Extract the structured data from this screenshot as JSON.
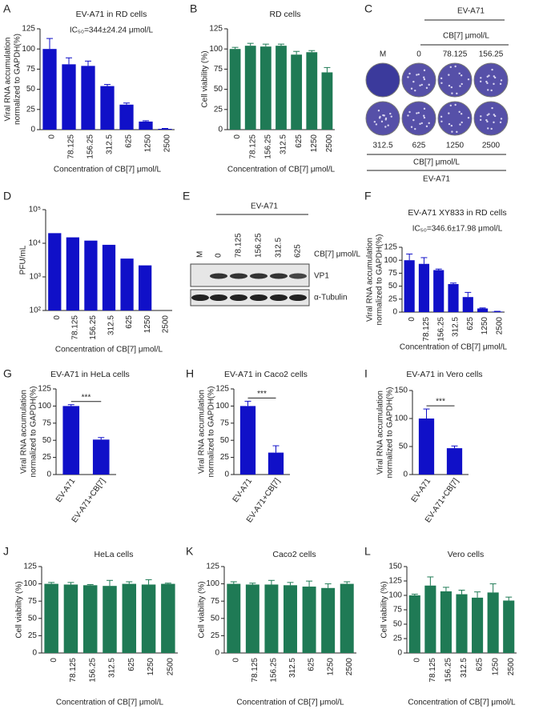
{
  "chart_data": [
    {
      "type": "bar",
      "label": "A",
      "title": "EV-A71 in RD cells",
      "annotation": "IC₅₀=344±24.24 μmol/L",
      "ylabel": [
        "Viral RNA accumulation",
        "normalized to GAPDH(%)"
      ],
      "xlabel": "Concentration of CB[7] μmol/L",
      "categories": [
        "0",
        "78.125",
        "156.25",
        "312.5",
        "625",
        "1250",
        "2500"
      ],
      "values": [
        100,
        81,
        79,
        54,
        31,
        10,
        1
      ],
      "errors": [
        13,
        8,
        6,
        2,
        2,
        1,
        0.5
      ],
      "color": "#1010c8",
      "ylim": [
        0,
        125
      ],
      "yticks": [
        0,
        25,
        50,
        75,
        100,
        125
      ]
    },
    {
      "type": "bar",
      "label": "B",
      "title": "RD cells",
      "ylabel": [
        "Cell viability  (%)"
      ],
      "xlabel": "Concentration of CB[7] μmol/L",
      "categories": [
        "0",
        "78.125",
        "156.25",
        "312.5",
        "625",
        "1250",
        "2500"
      ],
      "values": [
        100,
        104,
        103,
        104,
        93,
        96,
        71
      ],
      "errors": [
        2,
        3,
        3,
        2,
        4,
        2,
        6
      ],
      "color": "#1f7a55",
      "ylim": [
        0,
        125
      ],
      "yticks": [
        0,
        25,
        50,
        75,
        100,
        125
      ]
    },
    {
      "type": "plaque-assay",
      "label": "C",
      "top_label": "EV-A71",
      "top_sublabel": "CB[7] μmol/L",
      "top_lanes": [
        "M",
        "0",
        "78.125",
        "156.25"
      ],
      "bottom_lanes": [
        "312.5",
        "625",
        "1250",
        "2500"
      ],
      "bottom_sublabel": "CB[7] μmol/L",
      "bottom_label": "EV-A71"
    },
    {
      "type": "bar",
      "label": "D",
      "ylabel": [
        "PFU/mL"
      ],
      "xlabel": "Concentration of CB[7] μmol/L",
      "categories": [
        "0",
        "78.125",
        "156.25",
        "312.5",
        "625",
        "1250",
        "2500"
      ],
      "values": [
        20000,
        15000,
        12000,
        9000,
        3500,
        2200,
        null
      ],
      "color": "#1010c8",
      "log_scale": true,
      "ylim": [
        100,
        100000
      ],
      "yticks": [
        {
          "value": 100,
          "label": "10²"
        },
        {
          "value": 1000,
          "label": "10³"
        },
        {
          "value": 10000,
          "label": "10⁴"
        },
        {
          "value": 100000,
          "label": "10⁵"
        }
      ]
    },
    {
      "type": "western-blot",
      "label": "E",
      "header": "EV-A71",
      "lanes": [
        "M",
        "0",
        "78.125",
        "156.25",
        "312.5",
        "625"
      ],
      "lane_unit": "CB[7]  μmol/L",
      "bands": [
        "VP1",
        "α-Tubulin"
      ]
    },
    {
      "type": "bar",
      "label": "F",
      "title": "EV-A71 XY833 in RD cells",
      "annotation": "IC₅₀=346.6±17.98 μmol/L",
      "ylabel": [
        "Viral RNA accumulation",
        "normalized to GAPDH(%)"
      ],
      "xlabel": "Concentration of CB[7] μmol/L",
      "categories": [
        "0",
        "78.125",
        "156.25",
        "312.5",
        "625",
        "1250",
        "2500"
      ],
      "values": [
        100,
        93,
        81,
        54,
        29,
        7,
        1
      ],
      "errors": [
        12,
        12,
        2,
        2,
        9,
        1,
        0.5
      ],
      "color": "#1010c8",
      "ylim": [
        0,
        125
      ],
      "yticks": [
        0,
        25,
        50,
        75,
        100,
        125
      ]
    },
    {
      "type": "bar",
      "label": "G",
      "title": "EV-A71 in HeLa cells",
      "ylabel": [
        "Viral RNA accumulation",
        "normalized to GAPDH(%)"
      ],
      "categories": [
        "EV-A71",
        "EV-A71+CB[7]"
      ],
      "values": [
        100,
        51
      ],
      "errors": [
        2,
        3
      ],
      "color": "#1010c8",
      "significance": "***",
      "ylim": [
        0,
        125
      ],
      "yticks": [
        0,
        25,
        50,
        75,
        100,
        125
      ]
    },
    {
      "type": "bar",
      "label": "H",
      "title": "EV-A71 in Caco2 cells",
      "ylabel": [
        "Viral RNA accumulation",
        "normalized to GAPDH(%)"
      ],
      "categories": [
        "EV-A71",
        "EV-A71+CB[7]"
      ],
      "values": [
        100,
        32
      ],
      "errors": [
        7,
        10
      ],
      "color": "#1010c8",
      "significance": "***",
      "ylim": [
        0,
        125
      ],
      "yticks": [
        0,
        25,
        50,
        75,
        100,
        125
      ]
    },
    {
      "type": "bar",
      "label": "I",
      "title": "EV-A71 in Vero cells",
      "ylabel": [
        "Viral RNA accumulation",
        "normalized to GAPDH(%)"
      ],
      "categories": [
        "EV-A71",
        "EV-A71+CB[7]"
      ],
      "values": [
        100,
        47
      ],
      "errors": [
        17,
        4
      ],
      "color": "#1010c8",
      "significance": "***",
      "ylim": [
        0,
        150
      ],
      "yticks": [
        0,
        50,
        100,
        150
      ]
    },
    {
      "type": "bar",
      "label": "J",
      "title": "HeLa cells",
      "ylabel": [
        "Cell viability  (%)"
      ],
      "xlabel": "Concentration of CB[7] μmol/L",
      "categories": [
        "0",
        "78.125",
        "156.25",
        "312.5",
        "625",
        "1250",
        "2500"
      ],
      "values": [
        100,
        99,
        98,
        97,
        100,
        99,
        100
      ],
      "errors": [
        2,
        3,
        1,
        8,
        3,
        7,
        1
      ],
      "color": "#1f7a55",
      "ylim": [
        0,
        125
      ],
      "yticks": [
        0,
        25,
        50,
        75,
        100,
        125
      ]
    },
    {
      "type": "bar",
      "label": "K",
      "title": "Caco2 cells",
      "ylabel": [
        "Cell viability  (%)"
      ],
      "xlabel": "Concentration of CB[7] μmol/L",
      "categories": [
        "0",
        "78.125",
        "156.25",
        "312.5",
        "625",
        "1250",
        "2500"
      ],
      "values": [
        100,
        99,
        99,
        98,
        96,
        94,
        100
      ],
      "errors": [
        3,
        2,
        6,
        4,
        8,
        6,
        3
      ],
      "color": "#1f7a55",
      "ylim": [
        0,
        125
      ],
      "yticks": [
        0,
        25,
        50,
        75,
        100,
        125
      ]
    },
    {
      "type": "bar",
      "label": "L",
      "title": "Vero cells",
      "ylabel": [
        "Cell viability  (%)"
      ],
      "xlabel": "Concentration of CB[7] μmol/L",
      "categories": [
        "0",
        "78.125",
        "156.25",
        "312.5",
        "625",
        "1250",
        "2500"
      ],
      "values": [
        100,
        117,
        107,
        102,
        96,
        105,
        91
      ],
      "errors": [
        2,
        15,
        7,
        7,
        10,
        15,
        6
      ],
      "color": "#1f7a55",
      "ylim": [
        0,
        150
      ],
      "yticks": [
        0,
        25,
        50,
        75,
        100,
        125,
        150
      ]
    }
  ]
}
